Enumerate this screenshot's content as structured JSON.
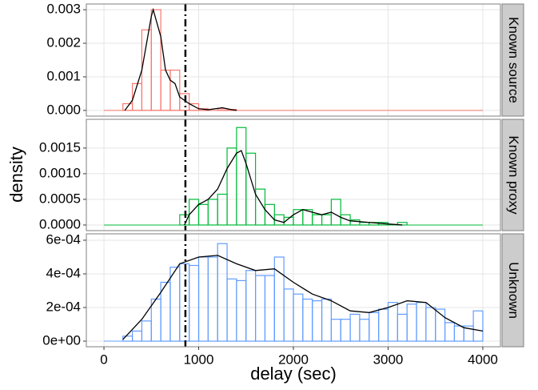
{
  "chart_data": [
    {
      "type": "histogram",
      "title": "Known source",
      "color": "#F8766D",
      "bins": [
        200,
        300,
        400,
        500,
        600,
        700,
        800,
        900,
        1000,
        1100,
        1200,
        1300,
        1400
      ],
      "values": [
        0.0002,
        0.0008,
        0.0024,
        0.003,
        0.0012,
        0.0012,
        0.0005,
        0.0002,
        5e-05,
        0,
        5e-05,
        3e-05
      ],
      "density_x": [
        220,
        300,
        400,
        500,
        520,
        600,
        650,
        700,
        750,
        800,
        900,
        1000,
        1100,
        1250,
        1350,
        1400
      ],
      "density_y": [
        0,
        0.0003,
        0.0012,
        0.0028,
        0.003,
        0.0022,
        0.0012,
        0.0009,
        0.0008,
        0.0004,
        0.0002,
        5e-05,
        2e-05,
        8e-05,
        2e-05,
        0
      ],
      "xlim": [
        -186,
        4186
      ],
      "xticks": [
        0,
        1000,
        2000,
        3000,
        4000
      ],
      "vline": 860,
      "ylim": [
        -0.00017,
        0.00317
      ],
      "yticks": [
        {
          "value": 0,
          "label": "0.000"
        },
        {
          "value": 0.001,
          "label": "0.001"
        },
        {
          "value": 0.002,
          "label": "0.002"
        },
        {
          "value": 0.003,
          "label": "0.003"
        }
      ],
      "grid": true
    },
    {
      "type": "histogram",
      "title": "Known proxy",
      "color": "#00BA38",
      "ylabel": "density",
      "bins": [
        800,
        900,
        1000,
        1100,
        1200,
        1300,
        1400,
        1500,
        1600,
        1700,
        1800,
        1900,
        2000,
        2100,
        2200,
        2300,
        2400,
        2500,
        2600,
        2700,
        2800,
        2900,
        3000,
        3100,
        3200
      ],
      "values": [
        0.0002,
        0.0005,
        0.0004,
        0.0005,
        0.0006,
        0.0015,
        0.0019,
        0.0014,
        0.0007,
        0.0004,
        0.0002,
        0.00015,
        0.0003,
        0.0003,
        0.0002,
        0.0002,
        0.0005,
        0.0002,
        0.0001,
        5e-05,
        5e-05,
        5e-05,
        0,
        5e-05
      ],
      "density_x": [
        850,
        900,
        1000,
        1100,
        1200,
        1300,
        1400,
        1450,
        1500,
        1600,
        1700,
        1800,
        1900,
        2000,
        2100,
        2200,
        2300,
        2400,
        2500,
        2600,
        2800,
        3000,
        3150
      ],
      "density_y": [
        0,
        0.0002,
        0.0004,
        0.0005,
        0.0007,
        0.0011,
        0.0014,
        0.00145,
        0.0012,
        0.0006,
        0.0003,
        0.0001,
        5e-05,
        0.0002,
        0.0003,
        0.00025,
        0.0002,
        0.00025,
        0.00015,
        8e-05,
        5e-05,
        2e-05,
        0
      ],
      "xlim": [
        -186,
        4186
      ],
      "xticks": [
        0,
        1000,
        2000,
        3000,
        4000
      ],
      "vline": 860,
      "ylim": [
        -0.00011,
        0.00206
      ],
      "yticks": [
        {
          "value": 0,
          "label": "0.0000"
        },
        {
          "value": 0.0005,
          "label": "0.0005"
        },
        {
          "value": 0.001,
          "label": "0.0010"
        },
        {
          "value": 0.0015,
          "label": "0.0015"
        }
      ],
      "grid": true
    },
    {
      "type": "histogram",
      "title": "Unknown",
      "color": "#619CFF",
      "xlabel": "delay (sec)",
      "bins": [
        200,
        300,
        400,
        500,
        600,
        700,
        800,
        900,
        1000,
        1100,
        1200,
        1300,
        1400,
        1500,
        1600,
        1700,
        1800,
        1900,
        2000,
        2100,
        2200,
        2300,
        2400,
        2500,
        2600,
        2700,
        2800,
        2900,
        3000,
        3100,
        3200,
        3300,
        3400,
        3500,
        3600,
        3700,
        3800,
        3900,
        4000
      ],
      "values": [
        3e-05,
        6e-05,
        0.00012,
        0.00025,
        0.00035,
        0.00044,
        0.00046,
        0.00045,
        0.0005,
        0.0005,
        0.00058,
        0.00037,
        0.00036,
        0.00042,
        0.00039,
        0.00039,
        0.0005,
        0.00031,
        0.00028,
        0.00025,
        0.00024,
        0.00025,
        0.00013,
        0.00013,
        0.00016,
        0.00013,
        0.00017,
        0.00019,
        0.00023,
        0.00016,
        0.00022,
        0.00023,
        0.0002,
        0.00019,
        0.00011,
        9e-05,
        9e-05,
        0.00018
      ],
      "density_x": [
        200,
        400,
        600,
        800,
        1000,
        1200,
        1400,
        1600,
        1800,
        2000,
        2200,
        2400,
        2600,
        2800,
        3000,
        3200,
        3400,
        3600,
        3800,
        4000
      ],
      "density_y": [
        1e-05,
        0.00013,
        0.00029,
        0.00046,
        0.0005,
        0.00051,
        0.00046,
        0.00042,
        0.00043,
        0.00035,
        0.00028,
        0.00024,
        0.00018,
        0.00017,
        0.0002,
        0.00024,
        0.00023,
        0.00014,
        8e-05,
        6e-05
      ],
      "xlim": [
        -186,
        4186
      ],
      "xticks": [
        0,
        1000,
        2000,
        3000,
        4000
      ],
      "vline": 860,
      "ylim": [
        -3.33e-05,
        0.000638
      ],
      "yticks": [
        {
          "value": 0,
          "label": "0e+00"
        },
        {
          "value": 0.0002,
          "label": "2e-04"
        },
        {
          "value": 0.0004,
          "label": "4e-04"
        },
        {
          "value": 0.0006,
          "label": "6e-04"
        }
      ],
      "grid": true
    }
  ]
}
